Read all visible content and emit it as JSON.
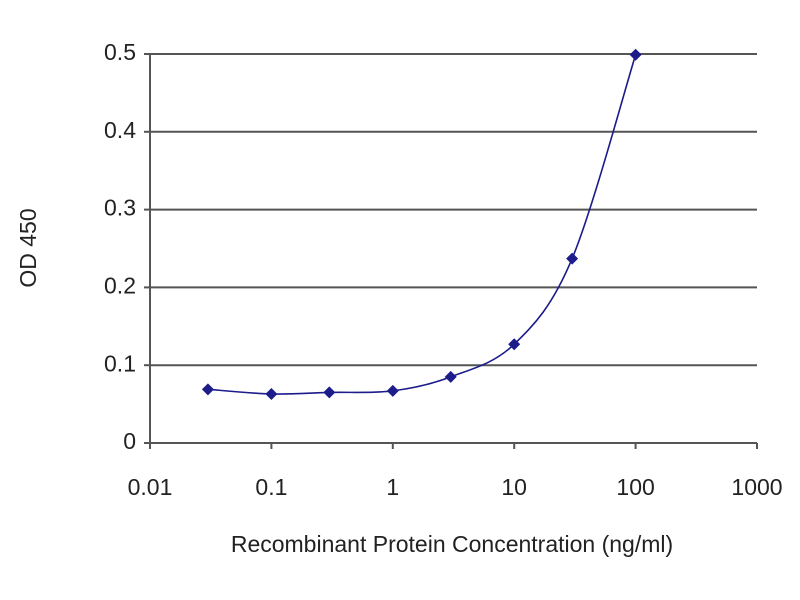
{
  "chart_data": {
    "type": "line",
    "x_label": "Recombinant Protein Concentration (ng/ml)",
    "y_label": "OD 450",
    "x": [
      0.03,
      0.1,
      0.3,
      1,
      3,
      10,
      30,
      100
    ],
    "values": [
      0.069,
      0.063,
      0.065,
      0.067,
      0.085,
      0.127,
      0.237,
      0.499
    ],
    "color": "#1c1c8a",
    "xscale": "log",
    "xlim": [
      0.01,
      1000
    ],
    "xticks": [
      0.01,
      0.1,
      1,
      10,
      100,
      1000
    ],
    "ylim": [
      0,
      0.5
    ],
    "yticks": [
      0,
      0.1,
      0.2,
      0.3,
      0.4,
      0.5
    ],
    "grid": true
  }
}
